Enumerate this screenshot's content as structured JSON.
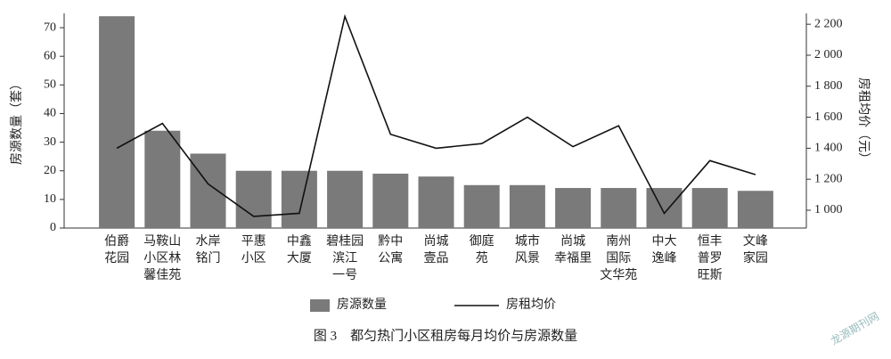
{
  "chart_data": {
    "type": "bar-line",
    "caption": "图 3　都匀热门小区租房每月均价与房源数量",
    "watermark": "龙源期刊网",
    "y_label": "房源数量（套）",
    "y2_label": "房租均价（元）",
    "categories": [
      [
        "伯爵",
        "花园"
      ],
      [
        "马鞍山",
        "小区林",
        "馨佳苑"
      ],
      [
        "水岸",
        "铭门"
      ],
      [
        "平惠",
        "小区"
      ],
      [
        "中鑫",
        "大厦"
      ],
      [
        "碧桂园",
        "滨江",
        "一号"
      ],
      [
        "黔中",
        "公寓"
      ],
      [
        "尚城",
        "壹品"
      ],
      [
        "御庭",
        "苑"
      ],
      [
        "城市",
        "风景"
      ],
      [
        "尚城",
        "幸福里"
      ],
      [
        "南州",
        "国际",
        "文华苑"
      ],
      [
        "中大",
        "逸峰"
      ],
      [
        "恒丰",
        "普罗",
        "旺斯"
      ],
      [
        "文峰",
        "家园"
      ]
    ],
    "series": [
      {
        "name": "房源数量",
        "type": "bar",
        "color": "#7a7a7a",
        "values": [
          74,
          34,
          26,
          20,
          20,
          20,
          19,
          18,
          15,
          15,
          14,
          14,
          14,
          14,
          13
        ]
      },
      {
        "name": "房租均价",
        "type": "line",
        "axis": "y2",
        "color": "#111111",
        "values": [
          1400,
          1560,
          1170,
          960,
          980,
          2250,
          1490,
          1400,
          1430,
          1600,
          1410,
          1545,
          980,
          1320,
          1230
        ]
      }
    ],
    "ylim": [
      0,
      75
    ],
    "yticks": [
      0,
      10,
      20,
      30,
      40,
      50,
      60,
      70
    ],
    "y2lim": [
      885,
      2270
    ],
    "y2ticks": [
      {
        "value": 1000,
        "label": "1 000"
      },
      {
        "value": 1200,
        "label": "1 200"
      },
      {
        "value": 1400,
        "label": "1 400"
      },
      {
        "value": 1600,
        "label": "1 600"
      },
      {
        "value": 1800,
        "label": "1 800"
      },
      {
        "value": 2000,
        "label": "2 000"
      },
      {
        "value": 2200,
        "label": "2 200"
      }
    ]
  }
}
